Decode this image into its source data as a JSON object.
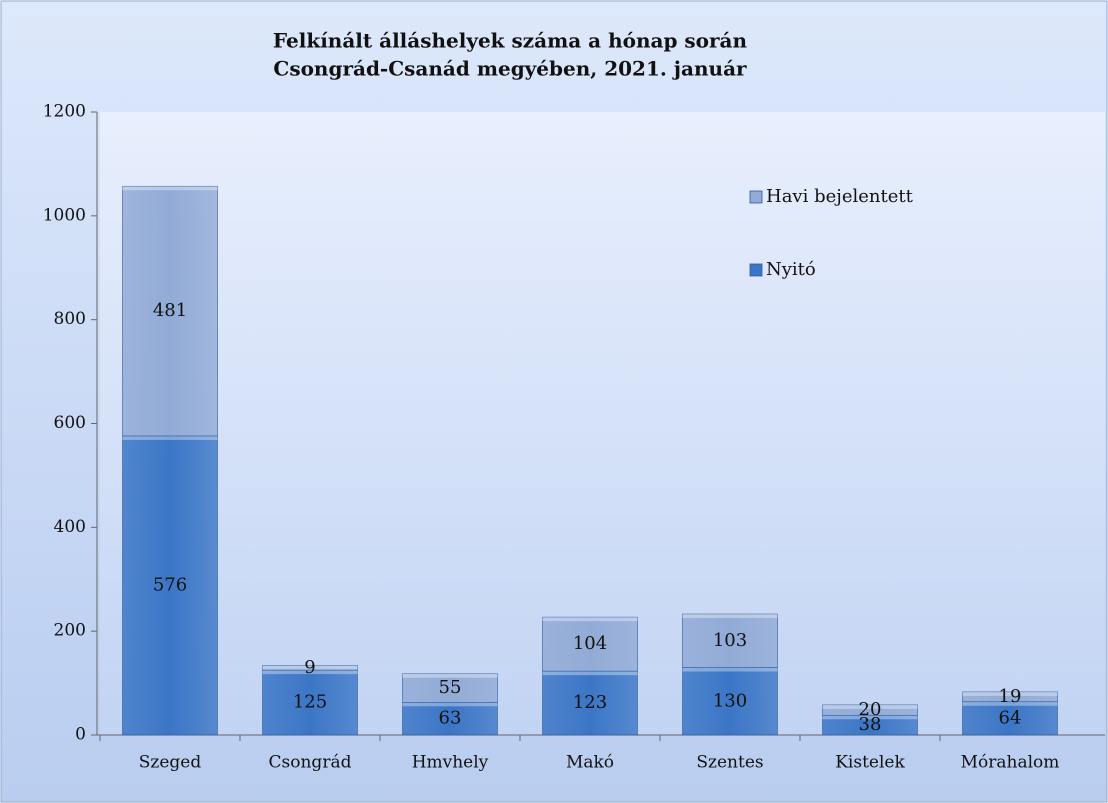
{
  "chart_data": {
    "type": "bar",
    "stacked": true,
    "title": [
      "Felkínált álláshelyek száma a hónap során",
      "Csongrád-Csanád megyében, 2021. január"
    ],
    "categories": [
      "Szeged",
      "Csongrád",
      "Hmvhely",
      "Makó",
      "Szentes",
      "Kistelek",
      "Mórahalom"
    ],
    "series": [
      {
        "name": "Nyitó",
        "color": "#3b76c6",
        "values": [
          576,
          125,
          63,
          123,
          130,
          38,
          64
        ]
      },
      {
        "name": "Havi bejelentett",
        "color": "#92abd6",
        "values": [
          481,
          9,
          55,
          104,
          103,
          20,
          19
        ]
      }
    ],
    "ylim": [
      0,
      1200
    ],
    "yticks": [
      0,
      200,
      400,
      600,
      800,
      1000,
      1200
    ],
    "grid": false
  }
}
